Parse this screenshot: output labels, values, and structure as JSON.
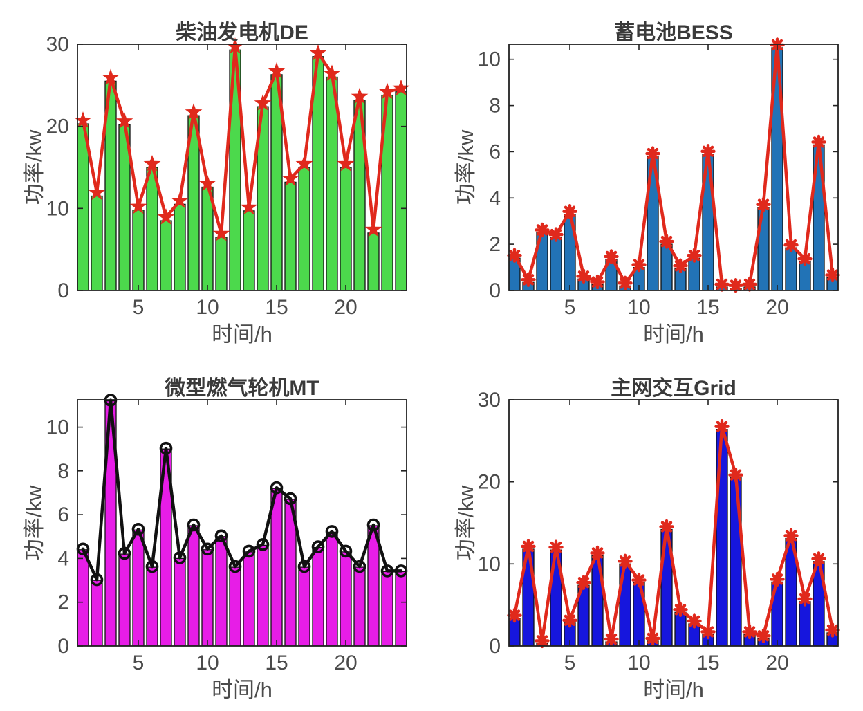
{
  "figure": {
    "background": "#ffffff",
    "text_color": "#4b4b4b",
    "axis_color": "#222222"
  },
  "chart_data": [
    {
      "type": "bar",
      "overlay": "line",
      "title": "柴油发电机DE",
      "xlabel": "时间/h",
      "ylabel": "功率/kw",
      "x": [
        1,
        2,
        3,
        4,
        5,
        6,
        7,
        8,
        9,
        10,
        11,
        12,
        13,
        14,
        15,
        16,
        17,
        18,
        19,
        20,
        21,
        22,
        23,
        24
      ],
      "values": [
        20.3,
        11.5,
        25.5,
        20.2,
        9.8,
        15.0,
        8.5,
        10.5,
        21.3,
        12.6,
        6.5,
        29.3,
        9.7,
        22.4,
        26.3,
        13.2,
        15.0,
        28.5,
        26.0,
        15.0,
        23.2,
        7.0,
        23.8,
        24.2
      ],
      "xticks": [
        5,
        10,
        15,
        20
      ],
      "yticks": [
        0,
        10,
        20,
        30
      ],
      "xlim": [
        0.6,
        24.4
      ],
      "ylim": [
        0,
        30
      ],
      "grid": false,
      "legend": null,
      "bar_color": "#4cd94c",
      "bar_edge_color": "#111111",
      "line_color": "#e0291c",
      "marker": "star",
      "marker_color": "#e0291c"
    },
    {
      "type": "bar",
      "overlay": "line",
      "title": "蓄电池BESS",
      "xlabel": "时间/h",
      "ylabel": "功率/kw",
      "x": [
        1,
        2,
        3,
        4,
        5,
        6,
        7,
        8,
        9,
        10,
        11,
        12,
        13,
        14,
        15,
        16,
        17,
        18,
        19,
        20,
        21,
        22,
        23,
        24
      ],
      "values": [
        1.4,
        0.35,
        2.5,
        2.3,
        3.3,
        0.5,
        0.25,
        1.35,
        0.2,
        1.0,
        5.8,
        2.0,
        0.95,
        1.4,
        5.9,
        0.15,
        0.1,
        0.15,
        3.6,
        10.5,
        1.85,
        1.25,
        6.3,
        0.55
      ],
      "xticks": [
        5,
        10,
        15,
        20
      ],
      "yticks": [
        0,
        2,
        4,
        6,
        8,
        10
      ],
      "xlim": [
        0.6,
        24.4
      ],
      "ylim": [
        0,
        10.65
      ],
      "grid": false,
      "legend": null,
      "bar_color": "#2273b6",
      "bar_edge_color": "#111111",
      "line_color": "#e0291c",
      "marker": "asterisk",
      "marker_color": "#e0291c"
    },
    {
      "type": "bar",
      "overlay": "line",
      "title": "微型燃气轮机MT",
      "xlabel": "时间/h",
      "ylabel": "功率/kw",
      "x": [
        1,
        2,
        3,
        4,
        5,
        6,
        7,
        8,
        9,
        10,
        11,
        12,
        13,
        14,
        15,
        16,
        17,
        18,
        19,
        20,
        21,
        22,
        23,
        24
      ],
      "values": [
        4.4,
        3.0,
        11.2,
        4.2,
        5.3,
        3.6,
        9.0,
        4.0,
        5.5,
        4.4,
        5.0,
        3.6,
        4.3,
        4.6,
        7.2,
        6.7,
        3.6,
        4.5,
        5.2,
        4.3,
        3.6,
        5.5,
        3.4,
        3.4
      ],
      "xticks": [
        5,
        10,
        15,
        20
      ],
      "yticks": [
        0,
        2,
        4,
        6,
        8,
        10
      ],
      "xlim": [
        0.6,
        24.4
      ],
      "ylim": [
        0,
        11.25
      ],
      "grid": false,
      "legend": null,
      "bar_color": "#e71de7",
      "bar_edge_color": "#111111",
      "line_color": "#111111",
      "marker": "circle",
      "marker_color": "#111111"
    },
    {
      "type": "bar",
      "overlay": "line",
      "title": "主网交互Grid",
      "xlabel": "时间/h",
      "ylabel": "功率/kw",
      "x": [
        1,
        2,
        3,
        4,
        5,
        6,
        7,
        8,
        9,
        10,
        11,
        12,
        13,
        14,
        15,
        16,
        17,
        18,
        19,
        20,
        21,
        22,
        23,
        24
      ],
      "values": [
        3.4,
        11.8,
        0.3,
        11.7,
        2.8,
        7.4,
        11.0,
        0.5,
        10.0,
        7.7,
        0.6,
        14.2,
        4.1,
        2.7,
        1.4,
        26.4,
        20.5,
        1.4,
        0.9,
        7.8,
        13.1,
        5.4,
        10.3,
        1.6
      ],
      "xticks": [
        5,
        10,
        15,
        20
      ],
      "yticks": [
        0,
        10,
        20,
        30
      ],
      "xlim": [
        0.6,
        24.4
      ],
      "ylim": [
        0,
        30
      ],
      "grid": false,
      "legend": null,
      "bar_color": "#1616dd",
      "bar_edge_color": "#111111",
      "line_color": "#e0291c",
      "marker": "asterisk",
      "marker_color": "#e0291c"
    }
  ]
}
